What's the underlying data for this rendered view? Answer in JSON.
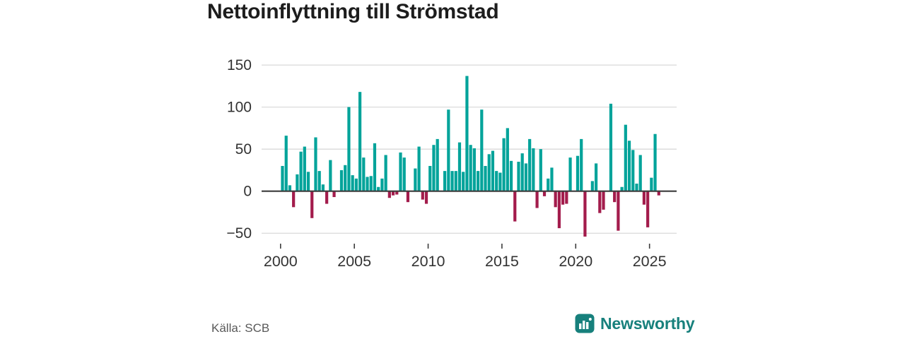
{
  "title": "Nettoinflyttning till Strömstad",
  "source": "Källa: SCB",
  "brand": {
    "name": "Newsworthy",
    "icon": "bar-chart-logo-icon",
    "color": "#17807c"
  },
  "colors": {
    "positive": "#00a39a",
    "negative": "#a31c4c",
    "grid": "#dadada",
    "zero_line": "#3c3c3c",
    "tick": "#3c3c3c",
    "label_text": "#333333"
  },
  "chart_data": {
    "type": "bar",
    "title": "Nettoinflyttning till Strömstad",
    "xlabel": "",
    "ylabel": "",
    "freq": "quarterly",
    "start_year": 2000,
    "start_quarter": 1,
    "end_label": "2025Q3",
    "grid": true,
    "legend": "none",
    "ylim": [
      -60,
      155
    ],
    "y_ticks": [
      {
        "label": "150",
        "value": 150
      },
      {
        "label": "100",
        "value": 100
      },
      {
        "label": "50",
        "value": 50
      },
      {
        "label": "0",
        "value": 0
      },
      {
        "label": "−50",
        "value": -50
      }
    ],
    "x_tick_labels": [
      "2000",
      "2005",
      "2010",
      "2015",
      "2020",
      "2025"
    ],
    "values": [
      30,
      66,
      7,
      -19,
      20,
      47,
      53,
      23,
      -32,
      64,
      24,
      8,
      -15,
      37,
      -7,
      0,
      25,
      31,
      100,
      19,
      15,
      118,
      40,
      17,
      18,
      57,
      5,
      15,
      43,
      -8,
      -5,
      -4,
      46,
      40,
      -13,
      0,
      27,
      53,
      -10,
      -15,
      30,
      55,
      62,
      0,
      24,
      97,
      24,
      24,
      58,
      23,
      137,
      55,
      51,
      24,
      97,
      30,
      44,
      48,
      24,
      22,
      63,
      75,
      36,
      -36,
      35,
      45,
      33,
      62,
      51,
      -20,
      50,
      -6,
      15,
      28,
      -19,
      -44,
      -16,
      -15,
      40,
      0,
      42,
      62,
      -54,
      0,
      12,
      33,
      -26,
      -22,
      0,
      104,
      -13,
      -47,
      5,
      79,
      60,
      49,
      9,
      43,
      -16,
      -43,
      16,
      68,
      -5
    ]
  }
}
